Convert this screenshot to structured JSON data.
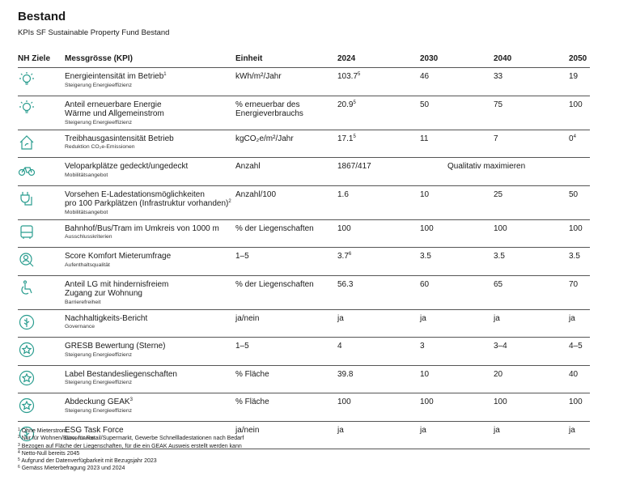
{
  "header": {
    "title": "Bestand",
    "subtitle": "KPIs SF Sustainable Property Fund Bestand"
  },
  "table": {
    "columns": [
      "NH Ziele",
      "Messgrösse (KPI)",
      "Einheit",
      "2024",
      "2030",
      "2040",
      "2050"
    ],
    "rows": [
      {
        "kpi": "Energieintensität im Betrieb",
        "note": "1",
        "category": "Steigerung Energieeffizienz",
        "unit": "kWh/m²/Jahr",
        "values": [
          {
            "text": "103.7",
            "note": "5"
          },
          "46",
          "33",
          "19"
        ]
      },
      {
        "kpi": "Anteil erneuerbare Energie\nWärme und Allgemeinstrom",
        "category": "Steigerung Energieeffizienz",
        "unit": "% erneuerbar des\nEnergieverbrauchs",
        "values": [
          {
            "text": "20.9",
            "note": "5"
          },
          "50",
          "75",
          "100"
        ]
      },
      {
        "kpi": "Treibhausgasintensität Betrieb",
        "category": "Reduktion CO₂e-Emissionen",
        "unit": "kgCO₂e/m²/Jahr",
        "values": [
          {
            "text": "17.1",
            "note": "5"
          },
          "11",
          "7",
          {
            "text": "0",
            "note": "4"
          }
        ]
      },
      {
        "kpi": "Veloparkplätze gedeckt/ungedeckt",
        "category": "Mobilitätsangebot",
        "unit": "Anzahl",
        "values": [
          "1867/417"
        ],
        "merged": "Qualitativ maximieren"
      },
      {
        "kpi": "Vorsehen E-Ladestationsmöglichkeiten\npro 100 Parkplätzen (Infrastruktur vorhanden)",
        "note": "2",
        "category": "Mobilitätsangebot",
        "unit": "Anzahl/100",
        "values": [
          "1.6",
          "10",
          "25",
          "50"
        ]
      },
      {
        "kpi": "Bahnhof/Bus/Tram im Umkreis von 1000 m",
        "category": "Ausschlusskriterien",
        "unit": "% der Liegenschaften",
        "values": [
          "100",
          "100",
          "100",
          "100"
        ]
      },
      {
        "kpi": "Score Komfort Mieterumfrage",
        "category": "Aufenthaltsqualität",
        "unit": "1–5",
        "values": [
          {
            "text": "3.7",
            "note": "6"
          },
          "3.5",
          "3.5",
          "3.5"
        ]
      },
      {
        "kpi": "Anteil LG mit hindernisfreiem\nZugang zur Wohnung",
        "category": "Barrierefreiheit",
        "unit": "% der Liegenschaften",
        "values": [
          "56.3",
          "60",
          "65",
          "70"
        ]
      },
      {
        "kpi": "Nachhaltigkeits-Bericht",
        "category": "Governance",
        "unit": "ja/nein",
        "values": [
          "ja",
          "ja",
          "ja",
          "ja"
        ]
      },
      {
        "kpi": "GRESB Bewertung (Sterne)",
        "category": "Steigerung Energieeffizienz",
        "unit": "1–5",
        "values": [
          "4",
          "3",
          "3–4",
          "4–5"
        ]
      },
      {
        "kpi": "Label Bestandesliegenschaften",
        "category": "Steigerung Energieeffizienz",
        "unit": "% Fläche",
        "values": [
          "39.8",
          "10",
          "20",
          "40"
        ]
      },
      {
        "kpi": "Abdeckung GEAK",
        "note": "3",
        "category": "Steigerung Energieeffizienz",
        "unit": "% Fläche",
        "values": [
          "100",
          "100",
          "100",
          "100"
        ]
      },
      {
        "kpi": "ESG Task Force",
        "category": "Governance",
        "unit": "ja/nein",
        "values": [
          "ja",
          "ja",
          "ja",
          "ja"
        ]
      }
    ]
  },
  "footnotes": [
    {
      "num": "1",
      "text": "Ohne Mieterstrom"
    },
    {
      "num": "2",
      "text": "Nur für Wohnen/Büro; für Retail/Supermarkt, Gewerbe Schnellladestationen nach Bedarf"
    },
    {
      "num": "3",
      "text": "Bezogen auf Fläche der Liegenschaften, für die ein GEAK Ausweis erstellt werden kann"
    },
    {
      "num": "4",
      "text": "Netto-Null bereits 2045"
    },
    {
      "num": "5",
      "text": "Aufgrund der Datenverfügbarkeit mit Bezugsjahr 2023"
    },
    {
      "num": "6",
      "text": "Gemäss Mieterbefragung 2023 und 2024"
    }
  ]
}
